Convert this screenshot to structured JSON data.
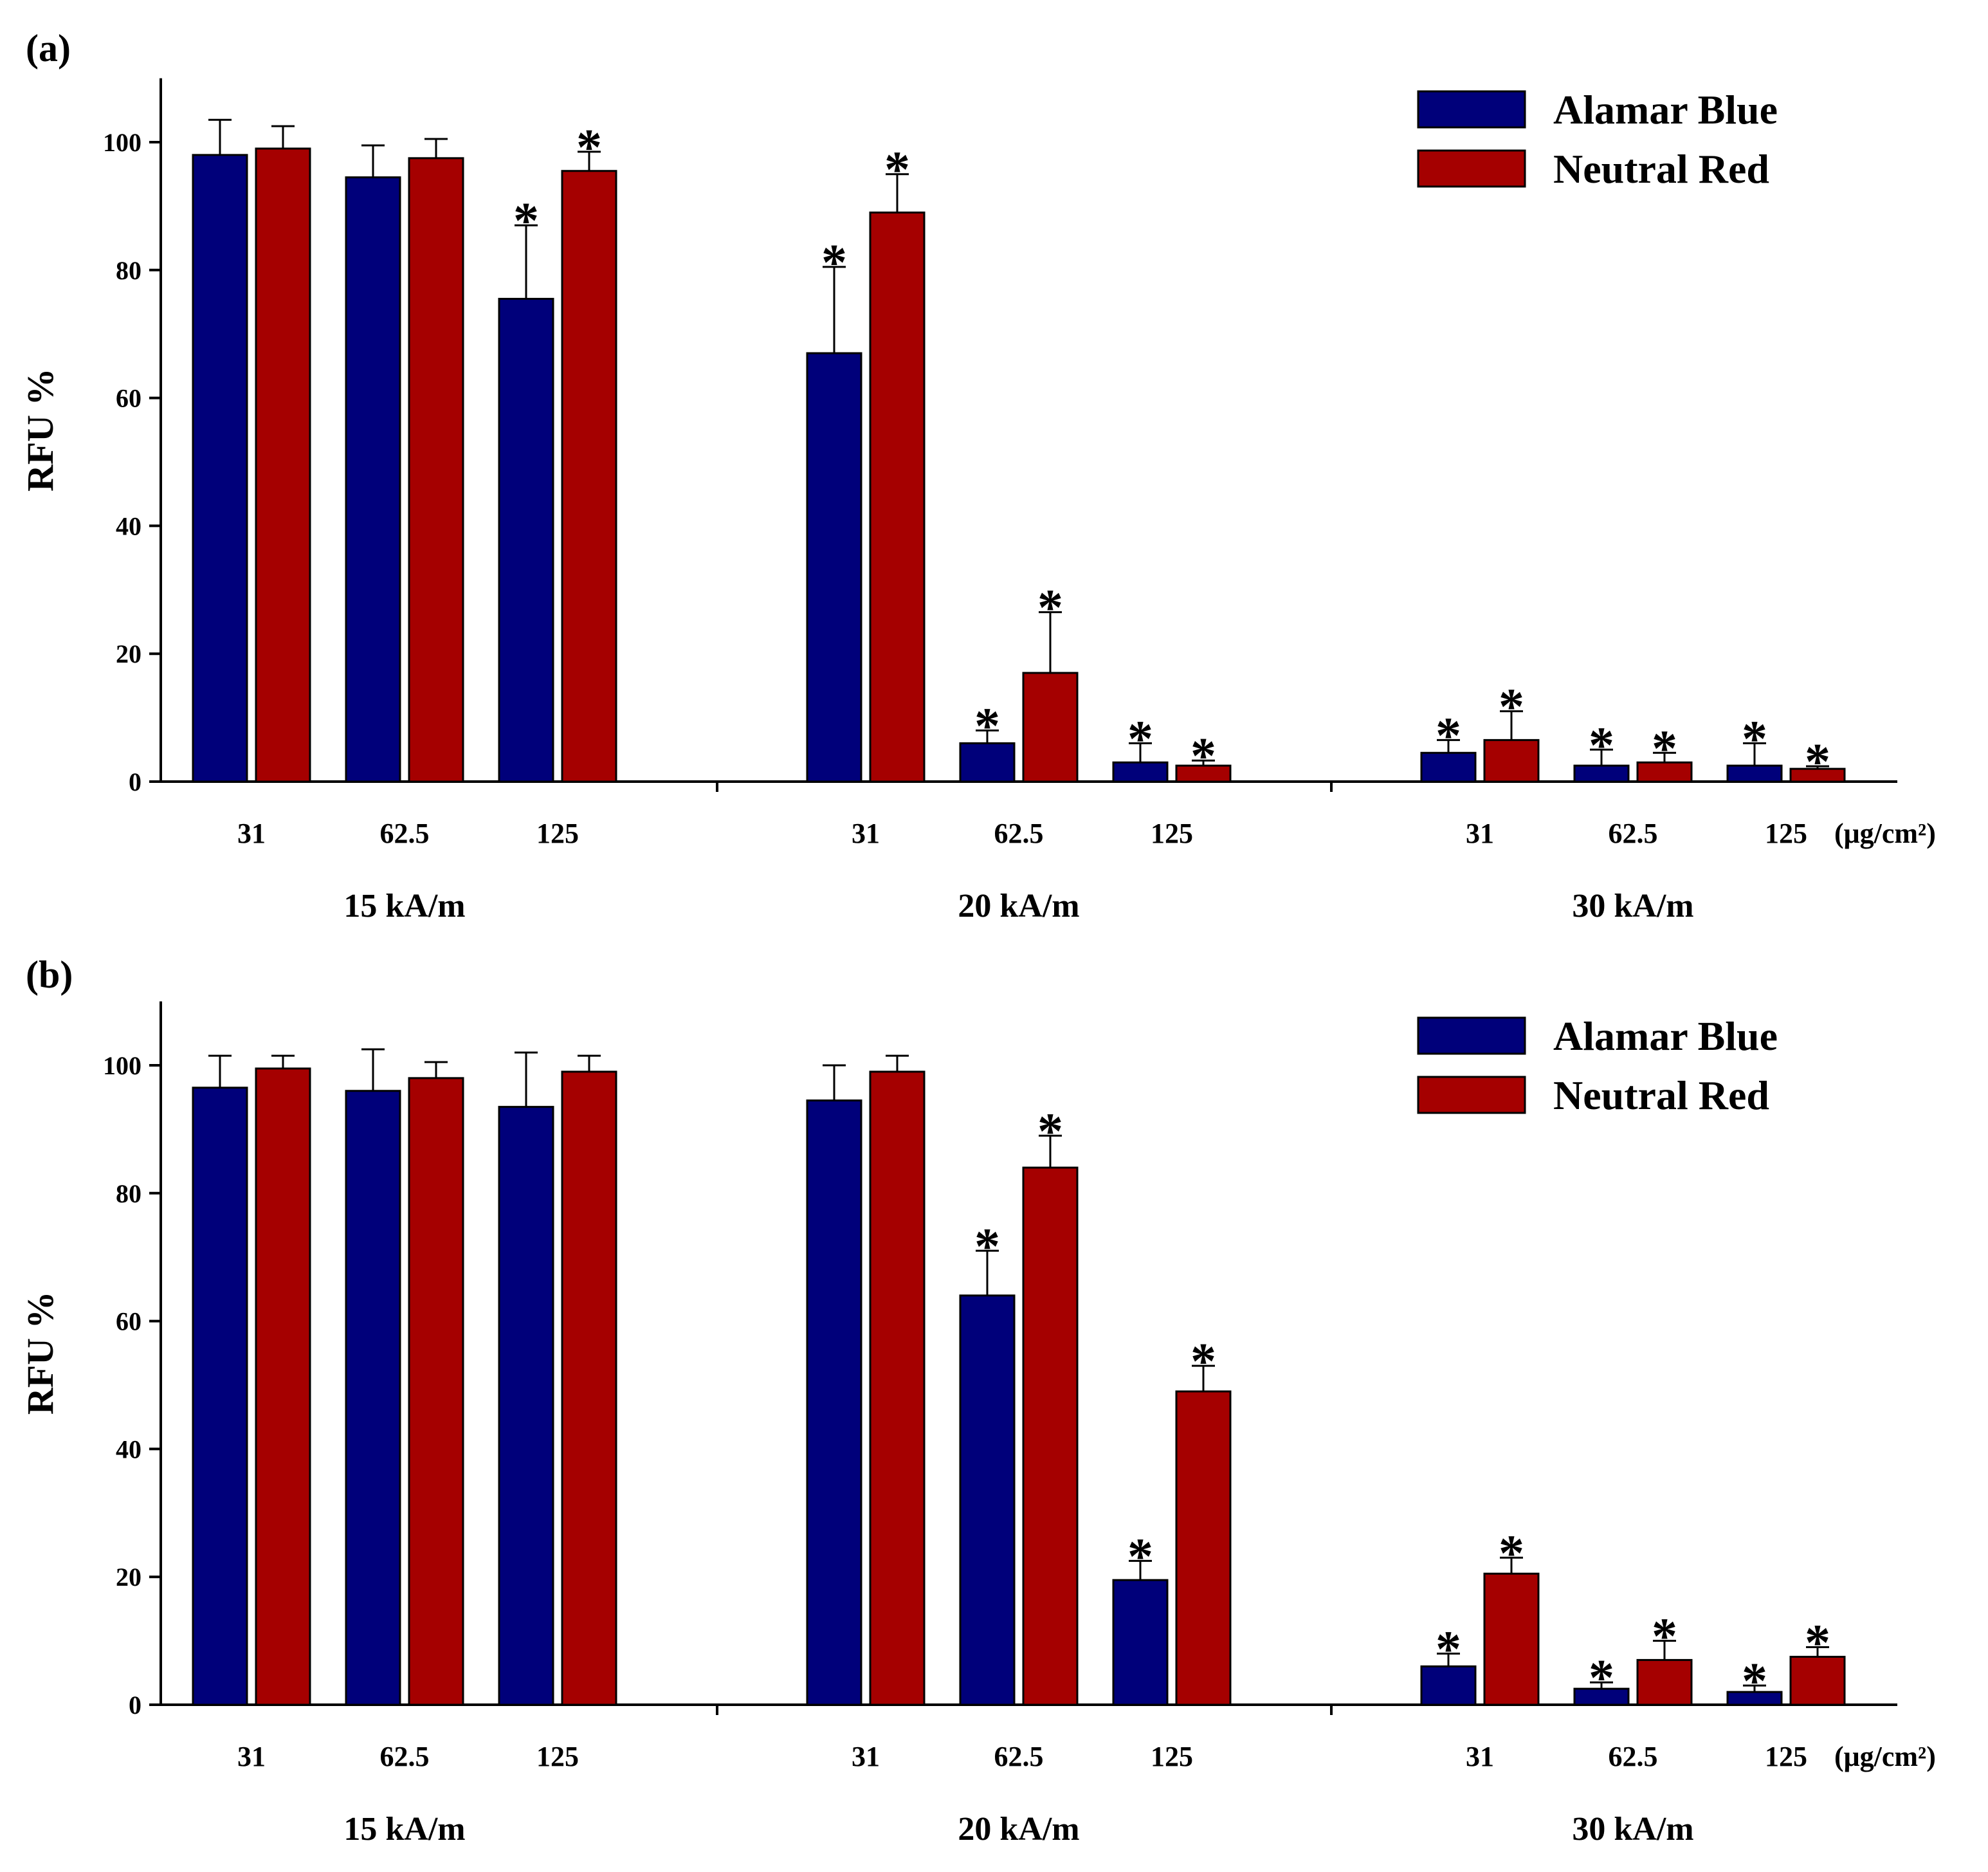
{
  "series_colors": {
    "Alamar Blue": "#00007a",
    "Neutral Red": "#a50000"
  },
  "chart_data": [
    {
      "type": "bar",
      "panel": "(a)",
      "ylabel": "RFU %",
      "ylim": [
        0,
        110
      ],
      "yticks": [
        0,
        20,
        40,
        60,
        80,
        100
      ],
      "legend": {
        "position": "top-right",
        "entries": [
          "Alamar Blue",
          "Neutral Red"
        ]
      },
      "unit_label": "(μg/cm²)",
      "groups": [
        {
          "label": "15 kA/m",
          "categories": [
            "31",
            "62.5",
            "125"
          ],
          "series": [
            {
              "name": "Alamar Blue",
              "values": [
                98,
                94.5,
                75.5
              ],
              "errors": [
                5.5,
                5,
                11.5
              ],
              "significant": [
                false,
                false,
                true
              ]
            },
            {
              "name": "Neutral Red",
              "values": [
                99,
                97.5,
                95.5
              ],
              "errors": [
                3.5,
                3,
                3
              ],
              "significant": [
                false,
                false,
                true
              ]
            }
          ]
        },
        {
          "label": "20 kA/m",
          "categories": [
            "31",
            "62.5",
            "125"
          ],
          "series": [
            {
              "name": "Alamar Blue",
              "values": [
                67,
                6,
                3
              ],
              "errors": [
                13.5,
                2,
                3
              ],
              "significant": [
                true,
                true,
                true
              ]
            },
            {
              "name": "Neutral Red",
              "values": [
                89,
                17,
                2.5
              ],
              "errors": [
                6,
                9.5,
                0.8
              ],
              "significant": [
                true,
                true,
                true
              ]
            }
          ]
        },
        {
          "label": "30 kA/m",
          "categories": [
            "31",
            "62.5",
            "125"
          ],
          "series": [
            {
              "name": "Alamar Blue",
              "values": [
                4.5,
                2.5,
                2.5
              ],
              "errors": [
                2,
                2.5,
                3.5
              ],
              "significant": [
                true,
                true,
                true
              ]
            },
            {
              "name": "Neutral Red",
              "values": [
                6.5,
                3,
                2
              ],
              "errors": [
                4.5,
                1.5,
                0.4
              ],
              "significant": [
                true,
                true,
                true
              ]
            }
          ]
        }
      ]
    },
    {
      "type": "bar",
      "panel": "(b)",
      "ylabel": "RFU %",
      "ylim": [
        0,
        110
      ],
      "yticks": [
        0,
        20,
        40,
        60,
        80,
        100
      ],
      "legend": {
        "position": "top-right",
        "entries": [
          "Alamar Blue",
          "Neutral Red"
        ]
      },
      "unit_label": "(μg/cm²)",
      "groups": [
        {
          "label": "15 kA/m",
          "categories": [
            "31",
            "62.5",
            "125"
          ],
          "series": [
            {
              "name": "Alamar Blue",
              "values": [
                96.5,
                96,
                93.5
              ],
              "errors": [
                5,
                6.5,
                8.5
              ],
              "significant": [
                false,
                false,
                false
              ]
            },
            {
              "name": "Neutral Red",
              "values": [
                99.5,
                98,
                99
              ],
              "errors": [
                2,
                2.5,
                2.5
              ],
              "significant": [
                false,
                false,
                false
              ]
            }
          ]
        },
        {
          "label": "20 kA/m",
          "categories": [
            "31",
            "62.5",
            "125"
          ],
          "series": [
            {
              "name": "Alamar Blue",
              "values": [
                94.5,
                64,
                19.5
              ],
              "errors": [
                5.5,
                7,
                3
              ],
              "significant": [
                false,
                true,
                true
              ]
            },
            {
              "name": "Neutral Red",
              "values": [
                99,
                84,
                49
              ],
              "errors": [
                2.5,
                5,
                4
              ],
              "significant": [
                false,
                true,
                true
              ]
            }
          ]
        },
        {
          "label": "30 kA/m",
          "categories": [
            "31",
            "62.5",
            "125"
          ],
          "series": [
            {
              "name": "Alamar Blue",
              "values": [
                6,
                2.5,
                2
              ],
              "errors": [
                2,
                1,
                1
              ],
              "significant": [
                true,
                true,
                true
              ]
            },
            {
              "name": "Neutral Red",
              "values": [
                20.5,
                7,
                7.5
              ],
              "errors": [
                2.5,
                3,
                1.5
              ],
              "significant": [
                true,
                true,
                true
              ]
            }
          ]
        }
      ]
    }
  ]
}
